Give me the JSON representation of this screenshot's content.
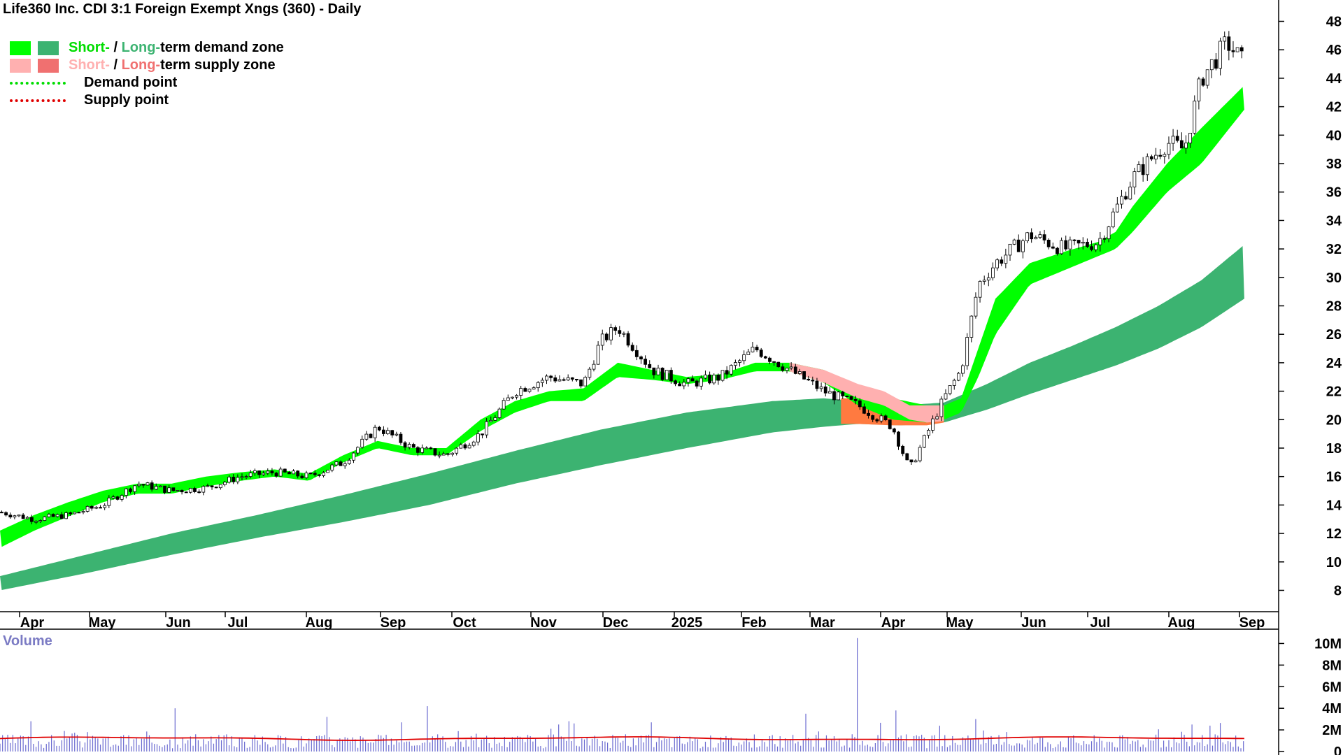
{
  "title": "Life360 Inc. CDI 3:1 Foreign Exempt Xngs (360) - Daily",
  "legend": {
    "demand_short_label": "Short-",
    "demand_long_label": "Long-",
    "demand_suffix": "term demand zone",
    "supply_short_label": "Short-",
    "supply_long_label": "Long-",
    "supply_suffix": "term supply zone",
    "sep": " / ",
    "demand_point": "Demand point",
    "supply_point": "Supply point"
  },
  "volume_label": "Volume",
  "colors": {
    "short_demand": "#00ff00",
    "long_demand": "#3cb371",
    "short_supply": "#ffb0b0",
    "long_supply": "#ff7a40",
    "demand_point": "#00dd00",
    "supply_point": "#e00000",
    "volume_bars": "#6a6ad0",
    "volume_avg": "#e00000"
  },
  "chart_data": {
    "type": "candlestick",
    "title": "Life360 Inc. CDI 3:1 Foreign Exempt Xngs (360) - Daily",
    "x_axis_labels": [
      "Apr",
      "May",
      "Jun",
      "Jul",
      "Aug",
      "Sep",
      "Oct",
      "Nov",
      "Dec",
      "2025",
      "Feb",
      "Mar",
      "Apr",
      "May",
      "Jun",
      "Jul",
      "Aug",
      "Sep"
    ],
    "y_ticks": [
      8,
      10,
      12,
      14,
      16,
      18,
      20,
      22,
      24,
      26,
      28,
      30,
      32,
      34,
      36,
      38,
      40,
      42,
      44,
      46,
      48
    ],
    "ylim": [
      6.5,
      49.5
    ],
    "price_path": {
      "x": [
        0,
        40,
        80,
        120,
        160,
        200,
        240,
        280,
        320,
        360,
        400,
        440,
        480,
        520,
        560,
        600,
        640,
        680,
        700,
        720,
        760,
        800,
        840,
        880,
        920,
        960,
        1000,
        1040,
        1060,
        1080,
        1100,
        1120,
        1140,
        1160,
        1200,
        1240,
        1280,
        1320,
        1360,
        1380,
        1400,
        1430,
        1450
      ],
      "y": [
        13.5,
        13.0,
        13.3,
        14.0,
        15.5,
        15.0,
        15.2,
        16.0,
        16.3,
        16.0,
        17.0,
        19.5,
        18.0,
        17.5,
        19.0,
        22.0,
        23.0,
        22.5,
        25.5,
        26.5,
        23.5,
        22.5,
        23.0,
        25.0,
        23.5,
        22.0,
        21.0,
        19.5,
        16.5,
        19.0,
        21.5,
        23.5,
        29.5,
        31.0,
        33.0,
        32.0,
        32.5,
        37.0,
        39.5,
        39.0,
        44.0,
        46.5,
        45.0
      ]
    },
    "short_demand_zone": {
      "x": [
        0,
        40,
        80,
        120,
        160,
        200,
        240,
        280,
        320,
        360,
        400,
        440,
        480,
        520,
        560,
        600,
        640,
        680,
        720,
        760,
        800,
        840,
        880,
        920,
        960,
        1000,
        1040,
        1080,
        1100,
        1120,
        1140,
        1160,
        1200,
        1240,
        1280,
        1300,
        1320,
        1360,
        1400,
        1450
      ],
      "upper": [
        12.2,
        13.3,
        14.2,
        15.0,
        15.5,
        15.5,
        16.0,
        16.3,
        16.5,
        16.2,
        17.5,
        18.5,
        18.0,
        18.0,
        20.0,
        21.3,
        22.0,
        22.2,
        24.0,
        23.5,
        23.0,
        23.2,
        24.0,
        24.0,
        23.5,
        22.3,
        21.5,
        21.0,
        21.0,
        21.5,
        25.0,
        28.5,
        31.0,
        31.8,
        32.5,
        33.2,
        35.0,
        38.0,
        40.5,
        43.5
      ],
      "lower": [
        11.0,
        12.2,
        13.2,
        14.2,
        14.8,
        14.8,
        15.3,
        15.7,
        16.0,
        15.7,
        17.0,
        18.0,
        17.5,
        17.5,
        19.2,
        20.5,
        21.3,
        21.3,
        23.0,
        22.8,
        22.5,
        22.8,
        23.4,
        23.4,
        22.6,
        21.0,
        20.0,
        19.8,
        20.0,
        20.5,
        23.0,
        26.0,
        29.5,
        30.5,
        31.5,
        32.0,
        33.2,
        36.0,
        38.0,
        41.8
      ]
    },
    "long_demand_zone": {
      "x": [
        0,
        100,
        200,
        300,
        400,
        500,
        600,
        700,
        800,
        900,
        960,
        1000,
        1050,
        1100,
        1150,
        1200,
        1250,
        1300,
        1350,
        1400,
        1450
      ],
      "upper": [
        9.0,
        10.5,
        12.0,
        13.3,
        14.7,
        16.2,
        17.8,
        19.3,
        20.5,
        21.3,
        21.5,
        21.3,
        21.0,
        21.2,
        22.5,
        24.0,
        25.2,
        26.5,
        28.0,
        29.8,
        32.3
      ],
      "lower": [
        8.0,
        9.2,
        10.5,
        11.7,
        12.8,
        14.0,
        15.5,
        16.8,
        18.0,
        19.1,
        19.5,
        19.7,
        19.6,
        19.8,
        20.7,
        21.8,
        22.8,
        23.8,
        25.0,
        26.5,
        28.5
      ]
    },
    "short_supply_zone": {
      "x": [
        920,
        960,
        1000,
        1030,
        1060,
        1080,
        1100
      ],
      "upper": [
        24.0,
        23.5,
        22.5,
        22.0,
        21.0,
        21.0,
        21.0
      ],
      "lower": [
        23.4,
        22.6,
        21.5,
        21.0,
        20.0,
        19.8,
        19.9
      ]
    },
    "long_supply_zone": {
      "x": [
        980,
        1000,
        1040,
        1080,
        1100
      ],
      "upper": [
        21.5,
        21.5,
        21.0,
        20.8,
        21.0
      ],
      "lower": [
        19.7,
        19.7,
        19.6,
        19.6,
        19.8
      ]
    },
    "volume": {
      "y_ticks": [
        "0",
        "2M",
        "4M",
        "6M",
        "8M",
        "10M"
      ],
      "ylim_millions": [
        0,
        11
      ],
      "avg_millions": 1.2,
      "spikes": [
        {
          "x": 37,
          "value_millions": 2.8
        },
        {
          "x": 74,
          "value_millions": 1.9
        },
        {
          "x": 102,
          "value_millions": 1.8
        },
        {
          "x": 204,
          "value_millions": 4.0
        },
        {
          "x": 380,
          "value_millions": 3.2
        },
        {
          "x": 467,
          "value_millions": 2.7
        },
        {
          "x": 499,
          "value_millions": 4.2
        },
        {
          "x": 650,
          "value_millions": 2.5
        },
        {
          "x": 662,
          "value_millions": 2.8
        },
        {
          "x": 758,
          "value_millions": 2.7
        },
        {
          "x": 938,
          "value_millions": 3.5
        },
        {
          "x": 998,
          "value_millions": 10.5
        },
        {
          "x": 1043,
          "value_millions": 3.8
        },
        {
          "x": 1137,
          "value_millions": 3.0
        },
        {
          "x": 1390,
          "value_millions": 2.5
        }
      ]
    }
  }
}
